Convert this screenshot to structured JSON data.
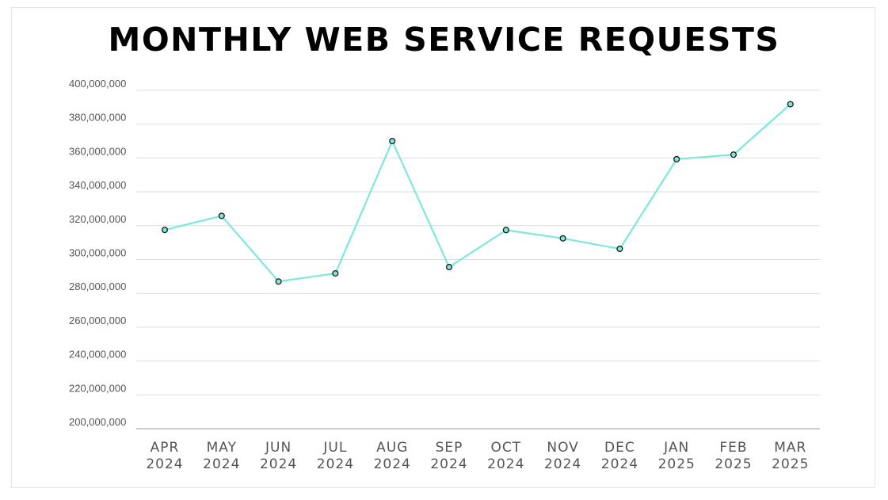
{
  "chart_data": {
    "type": "line",
    "title": "MONTHLY WEB SERVICE REQUESTS",
    "xlabel": "",
    "ylabel": "",
    "categories": [
      [
        "APR",
        "2024"
      ],
      [
        "MAY",
        "2024"
      ],
      [
        "JUN",
        "2024"
      ],
      [
        "JUL",
        "2024"
      ],
      [
        "AUG",
        "2024"
      ],
      [
        "SEP",
        "2024"
      ],
      [
        "OCT",
        "2024"
      ],
      [
        "NOV",
        "2024"
      ],
      [
        "DEC",
        "2024"
      ],
      [
        "JAN",
        "2025"
      ],
      [
        "FEB",
        "2025"
      ],
      [
        "MAR",
        "2025"
      ]
    ],
    "series": [
      {
        "values": [
          317500000,
          325800000,
          287000000,
          291800000,
          370000000,
          295500000,
          317400000,
          312500000,
          306300000,
          359300000,
          362000000,
          391800000
        ]
      }
    ],
    "ylim": [
      200000000,
      400000000
    ],
    "yticks": [
      "200,000,000",
      "220,000,000",
      "240,000,000",
      "260,000,000",
      "280,000,000",
      "300,000,000",
      "320,000,000",
      "340,000,000",
      "360,000,000",
      "380,000,000",
      "400,000,000"
    ],
    "ytick_values": [
      200000000,
      220000000,
      240000000,
      260000000,
      280000000,
      300000000,
      320000000,
      340000000,
      360000000,
      380000000,
      400000000
    ],
    "grid": true,
    "legend": "none",
    "colors": {
      "line": "#7de8dc",
      "marker_fill": "#7de8dc",
      "marker_stroke": "#1a1a1a",
      "grid": "#dddddd",
      "axis": "#999999"
    }
  }
}
